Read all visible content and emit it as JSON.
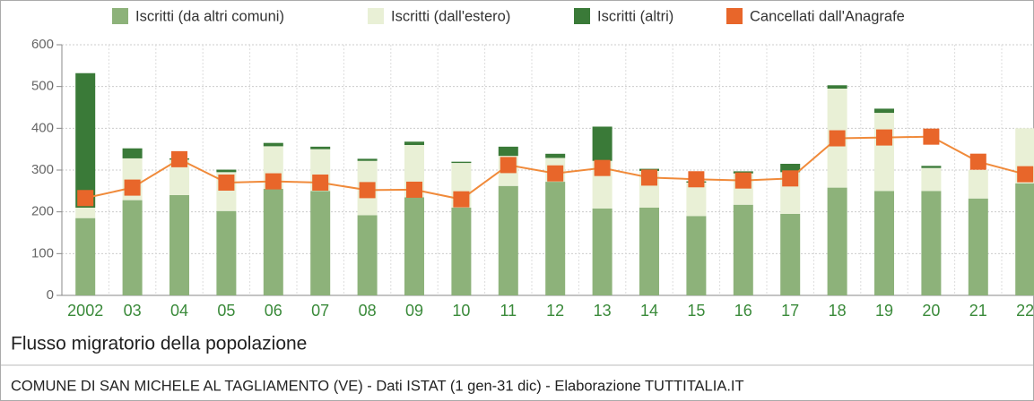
{
  "chart_data": {
    "type": "bar",
    "stacked": true,
    "title": "Flusso migratorio della popolazione",
    "subtitle": "COMUNE DI SAN MICHELE AL TAGLIAMENTO (VE) - Dati ISTAT (1 gen-31 dic) - Elaborazione TUTTITALIA.IT",
    "categories": [
      "2002",
      "03",
      "04",
      "05",
      "06",
      "07",
      "08",
      "09",
      "10",
      "11",
      "12",
      "13",
      "14",
      "15",
      "16",
      "17",
      "18",
      "19",
      "20",
      "21",
      "22"
    ],
    "series": [
      {
        "name": "Iscritti (da altri comuni)",
        "color": "#8db27a",
        "values": [
          185,
          228,
          240,
          202,
          255,
          250,
          192,
          235,
          210,
          262,
          272,
          208,
          210,
          190,
          217,
          195,
          258,
          250,
          250,
          232,
          268
        ]
      },
      {
        "name": "Iscritti (dall'estero)",
        "color": "#e9f0d6",
        "values": [
          25,
          100,
          85,
          93,
          102,
          100,
          130,
          125,
          107,
          72,
          57,
          114,
          88,
          80,
          75,
          100,
          237,
          187,
          55,
          68,
          132
        ]
      },
      {
        "name": "Iscritti (altri)",
        "color": "#3a7a38",
        "values": [
          322,
          24,
          3,
          6,
          8,
          6,
          5,
          8,
          3,
          22,
          10,
          82,
          5,
          3,
          5,
          20,
          8,
          10,
          5,
          0,
          0
        ]
      },
      {
        "name": "Cancellati dall'Anagrafe",
        "color": "#e8662a",
        "type": "line",
        "values": [
          233,
          258,
          326,
          270,
          273,
          270,
          252,
          253,
          230,
          312,
          292,
          305,
          282,
          278,
          275,
          280,
          376,
          378,
          380,
          320,
          290
        ]
      }
    ],
    "ylim": [
      0,
      600
    ],
    "yticks": [
      0,
      100,
      200,
      300,
      400,
      500,
      600
    ],
    "grid": true
  }
}
